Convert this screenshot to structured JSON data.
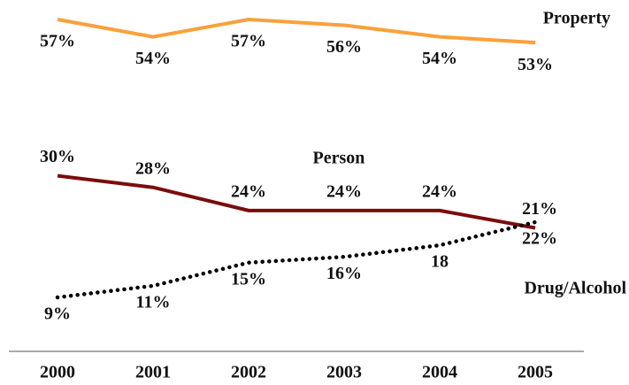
{
  "chart_data": {
    "type": "line",
    "categories": [
      "2000",
      "2001",
      "2002",
      "2003",
      "2004",
      "2005"
    ],
    "series": [
      {
        "name": "Property",
        "color": "#f9a13a",
        "line_style": "solid",
        "values": [
          57,
          54,
          57,
          56,
          54,
          53
        ],
        "value_labels": [
          "57%",
          "54%",
          "57%",
          "56%",
          "54%",
          "53%"
        ]
      },
      {
        "name": "Person",
        "color": "#7b0c0c",
        "line_style": "solid",
        "values": [
          30,
          28,
          24,
          24,
          24,
          21
        ],
        "value_labels": [
          "30%",
          "28%",
          "24%",
          "24%",
          "24%",
          "21%"
        ]
      },
      {
        "name": "Drug/Alcohol",
        "color": "#000000",
        "line_style": "dotted",
        "values": [
          9,
          11,
          15,
          16,
          18,
          22
        ],
        "value_labels": [
          "9%",
          "11%",
          "15%",
          "16%",
          "18",
          "22%"
        ]
      }
    ]
  }
}
